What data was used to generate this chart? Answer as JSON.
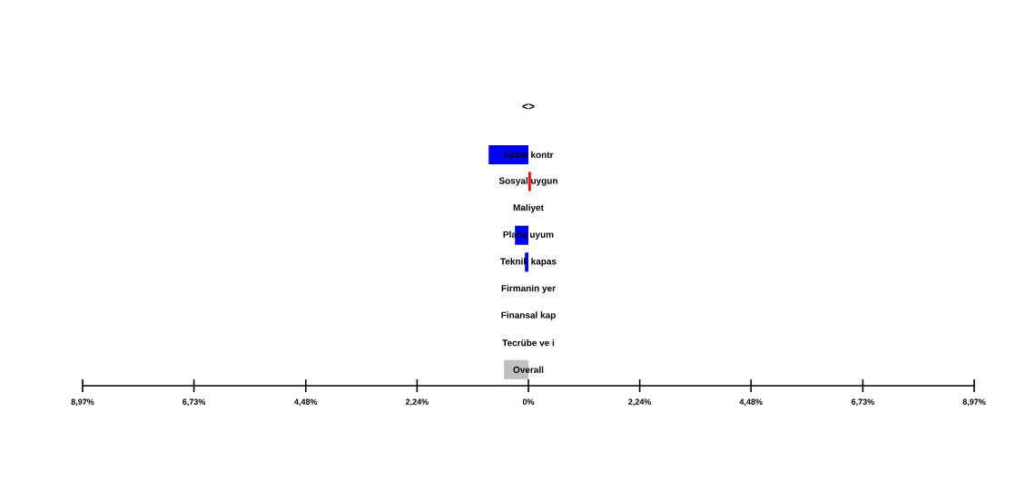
{
  "chart_data": {
    "type": "bar",
    "orientation": "horizontal",
    "title": "<>",
    "categories": [
      "Kalite kontr",
      "Sosyal uygun",
      "Maliyet",
      "Plana uyum",
      "Teknik kapas",
      "Firmanin yer",
      "Finansal kap",
      "Tecrübe ve i",
      "Overall"
    ],
    "values": [
      -0.8,
      0.05,
      0,
      -0.27,
      -0.07,
      0,
      0,
      0,
      -0.49
    ],
    "colors": [
      "#0000ff",
      "#ff0000",
      "#0000ff",
      "#0000ff",
      "#0000ff",
      "#0000ff",
      "#0000ff",
      "#0000ff",
      "#c0c0c0"
    ],
    "xlim": [
      -8.97,
      8.97
    ],
    "xticks": [
      {
        "value": -8.97,
        "label": "8,97%"
      },
      {
        "value": -6.73,
        "label": "6,73%"
      },
      {
        "value": -4.48,
        "label": "4,48%"
      },
      {
        "value": -2.24,
        "label": "2,24%"
      },
      {
        "value": 0,
        "label": "0%"
      },
      {
        "value": 2.24,
        "label": "2,24%"
      },
      {
        "value": 4.48,
        "label": "4,48%"
      },
      {
        "value": 6.73,
        "label": "6,73%"
      },
      {
        "value": 8.97,
        "label": "8,97%"
      }
    ]
  }
}
